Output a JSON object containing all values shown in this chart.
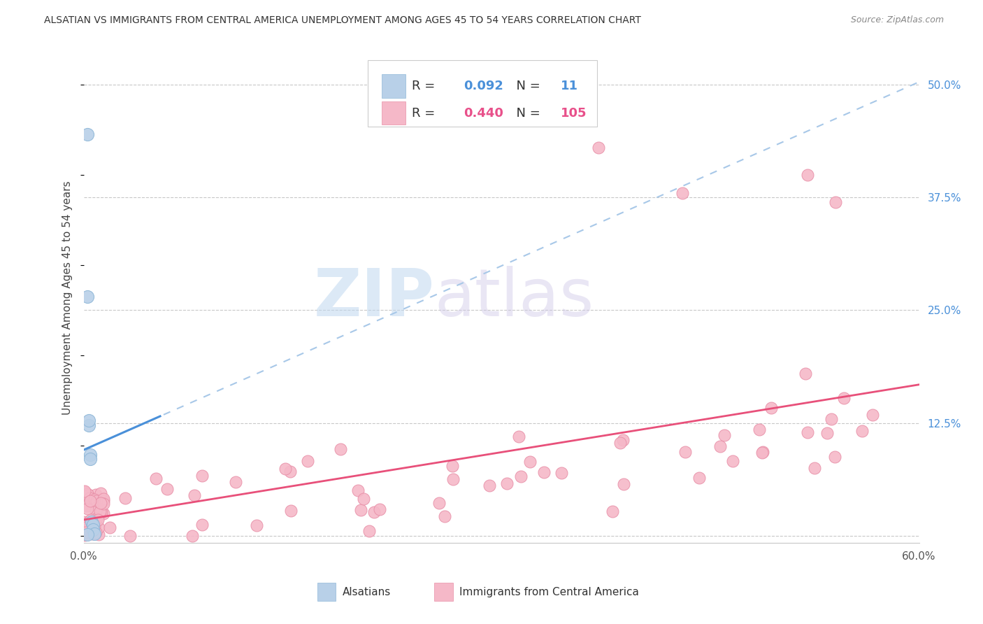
{
  "title": "ALSATIAN VS IMMIGRANTS FROM CENTRAL AMERICA UNEMPLOYMENT AMONG AGES 45 TO 54 YEARS CORRELATION CHART",
  "source": "Source: ZipAtlas.com",
  "ylabel": "Unemployment Among Ages 45 to 54 years",
  "xlim": [
    0.0,
    0.6
  ],
  "ylim": [
    -0.008,
    0.535
  ],
  "grid_color": "#c8c8c8",
  "background_color": "#ffffff",
  "alsatian_color": "#b8d0e8",
  "alsatian_edge_color": "#90b8d8",
  "immigrant_color": "#f5b8c8",
  "immigrant_edge_color": "#e890a8",
  "alsatian_R": 0.092,
  "alsatian_N": 11,
  "immigrant_R": 0.44,
  "immigrant_N": 105,
  "alsatian_line_color": "#4a90d9",
  "alsatian_line_dash_color": "#a8c8e8",
  "immigrant_line_color": "#e8507a",
  "legend_label1": "Alsatians",
  "legend_label2": "Immigrants from Central America",
  "watermark_zip": "ZIP",
  "watermark_atlas": "atlas",
  "legend_text_color": "#333333",
  "legend_value_color": "#4a90d9",
  "right_tick_color": "#4a90d9"
}
